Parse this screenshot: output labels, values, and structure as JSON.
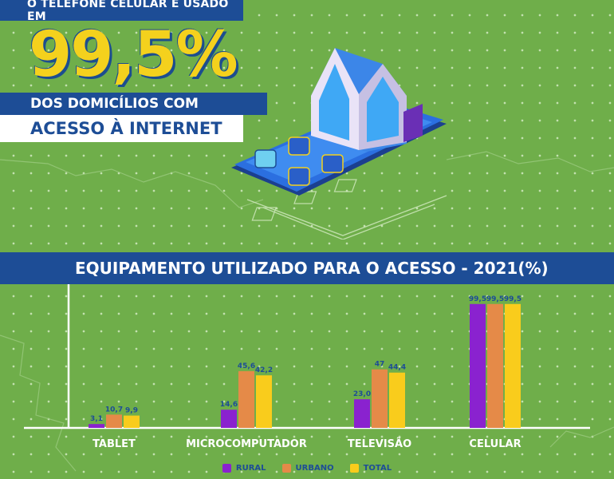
{
  "header": {
    "tag": "O TELEFONE CELULAR É USADO EM",
    "big_number": "99,5%",
    "line1": "DOS DOMICÍLIOS COM",
    "line2": "ACESSO À INTERNET"
  },
  "colors": {
    "background": "#6fae4a",
    "band": "#1d4d96",
    "accent": "#f4d11d",
    "rural": "#8a22cf",
    "urbano": "#e58a48",
    "total": "#f9cc1c"
  },
  "chart_data": {
    "type": "bar",
    "title": "EQUIPAMENTO UTILIZADO PARA O ACESSO  - 2021(%)",
    "categories": [
      "TABLET",
      "MICROCOMPUTADOR",
      "TELEVISÃO",
      "CELULAR"
    ],
    "series": [
      {
        "name": "RURAL",
        "values": [
          3.1,
          14.6,
          23.0,
          99.5
        ],
        "labels": [
          "3,1",
          "14,6",
          "23,0",
          "99,5"
        ],
        "color": "#8a22cf"
      },
      {
        "name": "URBANO",
        "values": [
          10.7,
          45.6,
          47,
          99.5
        ],
        "labels": [
          "10,7",
          "45,6",
          "47",
          "99,5"
        ],
        "color": "#e58a48"
      },
      {
        "name": "TOTAL",
        "values": [
          9.9,
          42.2,
          44.4,
          99.5
        ],
        "labels": [
          "9,9",
          "42,2",
          "44,4",
          "99,5"
        ],
        "color": "#f9cc1c"
      }
    ],
    "ylim": [
      0,
      100
    ],
    "legend": "bottom",
    "grid": false
  }
}
